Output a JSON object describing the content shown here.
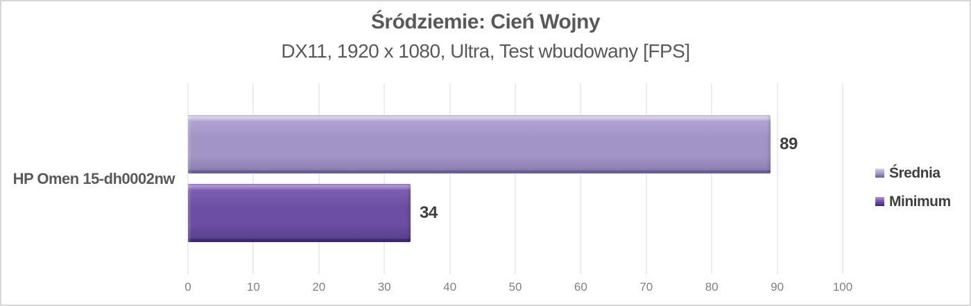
{
  "chart": {
    "title": "Śródziemie: Cień Wojny",
    "subtitle": "DX11, 1920 x 1080, Ultra, Test wbudowany [FPS]"
  },
  "chart_data": {
    "type": "bar",
    "orientation": "horizontal",
    "title": "Śródziemie: Cień Wojny",
    "subtitle": "DX11, 1920 x 1080, Ultra, Test wbudowany [FPS]",
    "categories": [
      "HP Omen 15-dh0002nw"
    ],
    "series": [
      {
        "name": "Średnia",
        "values": [
          89
        ],
        "colors": {
          "ridge": "#dad1ed",
          "light": "#b0a3d1",
          "mid": "#a295c6",
          "dark": "#8d80b2",
          "edge": "#695d91"
        }
      },
      {
        "name": "Minimum",
        "values": [
          34
        ],
        "colors": {
          "ridge": "#b392d8",
          "light": "#7c5fb0",
          "mid": "#6b4fa2",
          "dark": "#5a4090",
          "edge": "#3a2a63"
        }
      }
    ],
    "xlabel": "",
    "ylabel": "",
    "xlim": [
      0,
      100
    ],
    "xticks": [
      0,
      10,
      20,
      30,
      40,
      50,
      60,
      70,
      80,
      90,
      100
    ],
    "grid": true,
    "legend_position": "right",
    "value_labels": true,
    "text_colors": {
      "title": "#595959",
      "value_label": "#3f3f3f",
      "axis_tick": "#7f7f7f",
      "gridline": "#d9d9d9"
    }
  }
}
